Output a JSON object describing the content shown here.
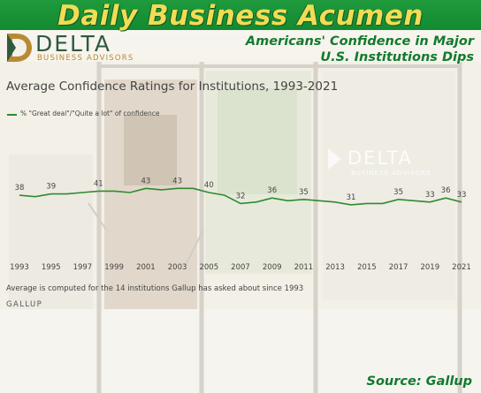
{
  "banner": {
    "title": "Daily Business Acumen"
  },
  "logo": {
    "word": "DELTA",
    "sub": "BUSINESS ADVISORS"
  },
  "headline": {
    "line1": "Americans' Confidence in Major",
    "line2": "U.S. Institutions Dips"
  },
  "colors": {
    "banner_green": "#1a9638",
    "title_yellow": "#f0dc55",
    "headline_green": "#137a2e",
    "series_green": "#2e8b2e",
    "logo_gold": "#b98a33",
    "logo_dark_green": "#2f5a3e"
  },
  "icons": {
    "logo_mark": "delta-logo-icon",
    "legend_marker": "legend-line-icon"
  },
  "chart_data": {
    "type": "line",
    "title": "Average Confidence Ratings for Institutions, 1993-2021",
    "xlabel": "",
    "ylabel": "",
    "xlim": [
      1993,
      2021
    ],
    "x_ticks": [
      1993,
      1995,
      1997,
      1999,
      2001,
      2003,
      2005,
      2007,
      2009,
      2011,
      2013,
      2015,
      2017,
      2019,
      2021
    ],
    "legend": "top-left",
    "grid": false,
    "series": [
      {
        "name": "% \"Great deal\"/\"Quite a lot\" of confidence",
        "x": [
          1993,
          1994,
          1995,
          1996,
          1997,
          1998,
          1999,
          2000,
          2001,
          2002,
          2003,
          2004,
          2005,
          2006,
          2007,
          2008,
          2009,
          2010,
          2011,
          2012,
          2013,
          2014,
          2015,
          2016,
          2017,
          2018,
          2019,
          2020,
          2021
        ],
        "values": [
          38,
          37,
          39,
          39,
          40,
          41,
          41,
          40,
          43,
          42,
          43,
          43,
          40,
          38,
          32,
          33,
          36,
          34,
          35,
          34,
          33,
          31,
          32,
          32,
          35,
          34,
          33,
          36,
          33
        ]
      }
    ],
    "data_labels": [
      {
        "x": 1993,
        "text": "38"
      },
      {
        "x": 1995,
        "text": "39"
      },
      {
        "x": 1998,
        "text": "41"
      },
      {
        "x": 2001,
        "text": "43"
      },
      {
        "x": 2003,
        "text": "43"
      },
      {
        "x": 2005,
        "text": "40"
      },
      {
        "x": 2007,
        "text": "32"
      },
      {
        "x": 2009,
        "text": "36"
      },
      {
        "x": 2011,
        "text": "35"
      },
      {
        "x": 2014,
        "text": "31"
      },
      {
        "x": 2017,
        "text": "35"
      },
      {
        "x": 2019,
        "text": "33"
      },
      {
        "x": 2020,
        "text": "36"
      },
      {
        "x": 2021,
        "text": "33"
      }
    ],
    "note": "Average is computed for the 14 institutions Gallup has asked about since 1993",
    "brand": "GALLUP"
  },
  "photo_sign": {
    "word": "DELTA",
    "sub": "BUSINESS ADVISORS"
  },
  "source": "Source: Gallup"
}
